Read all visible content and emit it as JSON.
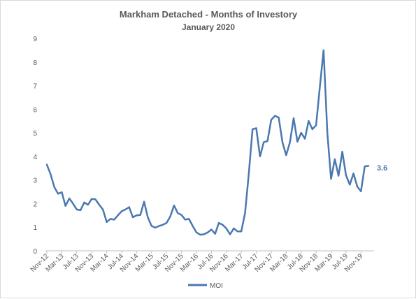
{
  "chart_data": {
    "type": "line",
    "title": "Markham Detached - Months of Investory",
    "subtitle": "January 2020",
    "xlabel": "",
    "ylabel": "",
    "ylim": [
      0,
      9
    ],
    "yticks": [
      "0",
      "1",
      "2",
      "3",
      "4",
      "5",
      "6",
      "7",
      "8",
      "9"
    ],
    "grid": false,
    "legend_position": "bottom",
    "line_color": "#4a78b0",
    "x_tick_labels": [
      "Nov-12",
      "Mar-13",
      "Jul-13",
      "Nov-13",
      "Mar-14",
      "Jul-14",
      "Nov-14",
      "Mar-15",
      "Jul-15",
      "Nov-15",
      "Mar-16",
      "Jul-16",
      "Nov-16",
      "Mar-17",
      "Jul-17",
      "Nov-17",
      "Mar-18",
      "Jul-18",
      "Nov-18",
      "Mar-19",
      "Jul-19",
      "Nov-19"
    ],
    "x": [
      "Nov-12",
      "Dec-12",
      "Jan-13",
      "Feb-13",
      "Mar-13",
      "Apr-13",
      "May-13",
      "Jun-13",
      "Jul-13",
      "Aug-13",
      "Sep-13",
      "Oct-13",
      "Nov-13",
      "Dec-13",
      "Jan-14",
      "Feb-14",
      "Mar-14",
      "Apr-14",
      "May-14",
      "Jun-14",
      "Jul-14",
      "Aug-14",
      "Sep-14",
      "Oct-14",
      "Nov-14",
      "Dec-14",
      "Jan-15",
      "Feb-15",
      "Mar-15",
      "Apr-15",
      "May-15",
      "Jun-15",
      "Jul-15",
      "Aug-15",
      "Sep-15",
      "Oct-15",
      "Nov-15",
      "Dec-15",
      "Jan-16",
      "Feb-16",
      "Mar-16",
      "Apr-16",
      "May-16",
      "Jun-16",
      "Jul-16",
      "Aug-16",
      "Sep-16",
      "Oct-16",
      "Nov-16",
      "Dec-16",
      "Jan-17",
      "Feb-17",
      "Mar-17",
      "Apr-17",
      "May-17",
      "Jun-17",
      "Jul-17",
      "Aug-17",
      "Sep-17",
      "Oct-17",
      "Nov-17",
      "Dec-17",
      "Jan-18",
      "Feb-18",
      "Mar-18",
      "Apr-18",
      "May-18",
      "Jun-18",
      "Jul-18",
      "Aug-18",
      "Sep-18",
      "Oct-18",
      "Nov-18",
      "Dec-18",
      "Jan-19",
      "Feb-19",
      "Mar-19",
      "Apr-19",
      "May-19",
      "Jun-19",
      "Jul-19",
      "Aug-19",
      "Sep-19",
      "Oct-19",
      "Nov-19",
      "Dec-19",
      "Jan-20"
    ],
    "series": [
      {
        "name": "MOI",
        "values": [
          3.65,
          3.25,
          2.7,
          2.42,
          2.48,
          1.9,
          2.22,
          2.0,
          1.75,
          1.72,
          2.05,
          1.95,
          2.2,
          2.18,
          1.95,
          1.75,
          1.22,
          1.35,
          1.32,
          1.5,
          1.68,
          1.75,
          1.85,
          1.42,
          1.5,
          1.52,
          2.08,
          1.42,
          1.05,
          0.98,
          1.05,
          1.1,
          1.18,
          1.45,
          1.92,
          1.6,
          1.52,
          1.32,
          1.35,
          1.05,
          0.78,
          0.68,
          0.7,
          0.78,
          0.9,
          0.72,
          1.18,
          1.1,
          0.95,
          0.7,
          0.95,
          0.82,
          0.82,
          1.6,
          3.25,
          5.15,
          5.2,
          4.0,
          4.6,
          4.65,
          5.55,
          5.72,
          5.65,
          4.6,
          4.05,
          4.6,
          5.62,
          4.62,
          5.0,
          4.75,
          5.5,
          5.15,
          5.32,
          6.95,
          8.5,
          5.0,
          3.05,
          3.88,
          3.18,
          4.2,
          3.2,
          2.8,
          3.28,
          2.72,
          2.52,
          3.58,
          3.6
        ]
      }
    ],
    "end_label": "3.6"
  }
}
